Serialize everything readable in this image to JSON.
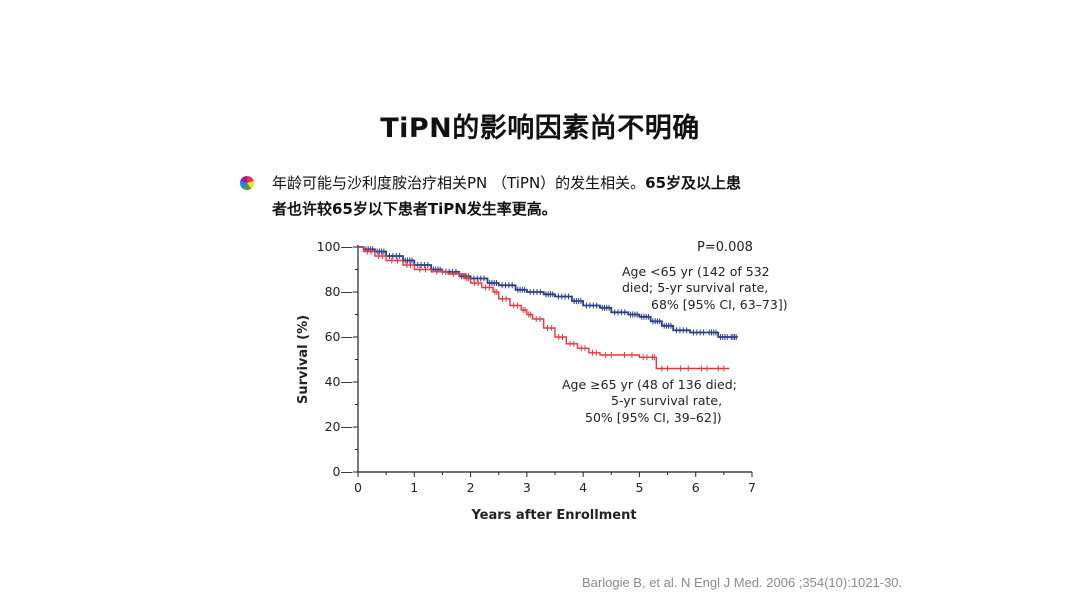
{
  "slide": {
    "title": "TiPN的影响因素尚不明确",
    "bullet_line1": "年龄可能与沙利度胺治疗相关PN （TiPN）的发生相关。",
    "bullet_line1_bold": "65岁及以上患",
    "bullet_line2": "者也许较65岁以下患者TiPN发生率更高。",
    "citation": "Barlogie B, et al. N Engl J Med. 2006 ;354(10):1021-30."
  },
  "colors": {
    "young": "#2a3d8f",
    "old": "#e8373b",
    "axis": "#222222"
  },
  "chart_data": {
    "type": "line",
    "title": "",
    "xlabel": "Years after Enrollment",
    "ylabel": "Survival (%)",
    "xlim": [
      0,
      7
    ],
    "ylim": [
      0,
      100
    ],
    "xticks": [
      0,
      1,
      2,
      3,
      4,
      5,
      6,
      7
    ],
    "yticks": [
      0,
      20,
      40,
      60,
      80,
      100
    ],
    "grid": false,
    "p_value_label": "P=0.008",
    "series": [
      {
        "name": "Age <65 yr",
        "color": "#2a3d8f",
        "annotation": [
          "Age <65 yr (142 of 532",
          "died; 5-yr survival rate,",
          "68% [95% CI, 63–73])"
        ],
        "x": [
          0,
          0.1,
          0.3,
          0.5,
          0.8,
          1.0,
          1.3,
          1.5,
          1.8,
          2.0,
          2.3,
          2.5,
          2.8,
          3.0,
          3.3,
          3.5,
          3.8,
          4.0,
          4.3,
          4.5,
          4.8,
          5.0,
          5.2,
          5.4,
          5.6,
          5.9,
          6.2,
          6.4,
          6.6,
          6.75
        ],
        "y": [
          100,
          99,
          98,
          96,
          94,
          92,
          90,
          89,
          87,
          86,
          84,
          83,
          81,
          80,
          79,
          78,
          76,
          74,
          73,
          71,
          70,
          69,
          67,
          65,
          63,
          62,
          62,
          60,
          60,
          60
        ]
      },
      {
        "name": "Age ≥65 yr",
        "color": "#e8373b",
        "annotation": [
          "Age ≥65 yr (48 of 136 died;",
          "5-yr survival rate,",
          "50% [95% CI, 39–62])"
        ],
        "x": [
          0,
          0.1,
          0.3,
          0.5,
          0.8,
          1.0,
          1.3,
          1.6,
          1.9,
          2.0,
          2.2,
          2.4,
          2.5,
          2.7,
          2.9,
          3.0,
          3.1,
          3.3,
          3.5,
          3.7,
          3.9,
          4.1,
          4.3,
          4.6,
          5.0,
          5.2,
          5.3,
          5.6,
          6.0,
          6.3,
          6.6
        ],
        "y": [
          100,
          98,
          96,
          94,
          92,
          90,
          89,
          88,
          86,
          84,
          82,
          80,
          77,
          74,
          72,
          70,
          68,
          64,
          60,
          57,
          55,
          53,
          52,
          52,
          51,
          51,
          46,
          46,
          46,
          46,
          46
        ]
      }
    ]
  }
}
